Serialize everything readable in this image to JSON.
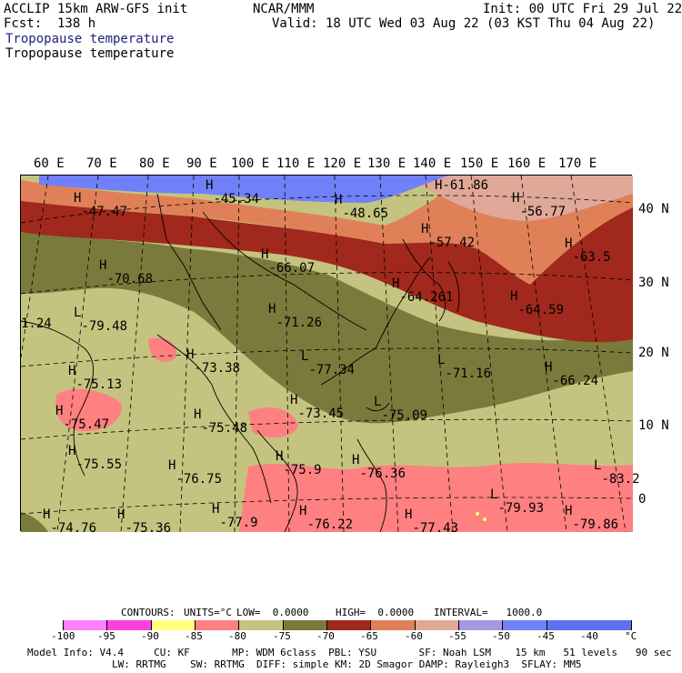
{
  "header": {
    "line1_left": "ACCLIP 15km ARW-GFS init",
    "line1_mid": "NCAR/MMM",
    "line1_right": "Init: 00 UTC Fri 29 Jul 22",
    "line2_left": "Fcst:  138 h",
    "line2_right": "Valid: 18 UTC Wed 03 Aug 22 (03 KST Thu 04 Aug 22)",
    "field1": "Tropopause temperature",
    "field2": "Tropopause temperature"
  },
  "lon_labels": [
    "60 E",
    "70 E",
    "80 E",
    "90 E",
    "100 E",
    "110 E",
    "120 E",
    "130 E",
    "140 E",
    "150 E",
    "160 E",
    "170 E"
  ],
  "lat_labels": [
    "40 N",
    "30 N",
    "20 N",
    "10 N",
    "0"
  ],
  "colors": {
    "c_lt_neg100": "#ffffff",
    "c_m100_m95": "#ff80ff",
    "c_m95_m90": "#ff40e0",
    "c_m90_m85": "#ffff80",
    "c_m85_m80": "#ff8080",
    "c_m80_m75": "#c4c480",
    "c_m75_m70": "#7a7a3c",
    "c_m70_m65": "#a0281c",
    "c_m65_m60": "#e08058",
    "c_m60_m55": "#e0a898",
    "c_m55_m50": "#a898e0",
    "c_m50_m45": "#7080f8",
    "c_gt_m45": "#6070f0"
  },
  "extrema": [
    {
      "type": "H",
      "value": "-47.47"
    },
    {
      "type": "H",
      "value": "-45.34"
    },
    {
      "type": "H",
      "value": "-48.65"
    },
    {
      "type": "H",
      "value": "-61.86"
    },
    {
      "type": "H",
      "value": "-56.77"
    },
    {
      "type": "H",
      "value": "-57.42"
    },
    {
      "type": "H",
      "value": "-66.07"
    },
    {
      "type": "H",
      "value": "-63.5"
    },
    {
      "type": "H",
      "value": "-70.68"
    },
    {
      "type": "L",
      "value": "-79.48"
    },
    {
      "type": "H",
      "value": "-71.26"
    },
    {
      "type": "H",
      "value": "-64.261"
    },
    {
      "type": "H",
      "value": "-64.59"
    },
    {
      "type": "",
      "value": "1.24"
    },
    {
      "type": "H",
      "value": "-73.38"
    },
    {
      "type": "L",
      "value": "-77.34"
    },
    {
      "type": "L",
      "value": "-71.16"
    },
    {
      "type": "H",
      "value": "-66.24"
    },
    {
      "type": "H",
      "value": "-75.13"
    },
    {
      "type": "H",
      "value": "-73.45"
    },
    {
      "type": "L",
      "value": "-75.09"
    },
    {
      "type": "H",
      "value": "-75.47"
    },
    {
      "type": "H",
      "value": "-75.48"
    },
    {
      "type": "H",
      "value": "-75.55"
    },
    {
      "type": "H",
      "value": "-76.75"
    },
    {
      "type": "H",
      "value": "-75.9"
    },
    {
      "type": "H",
      "value": "-76.36"
    },
    {
      "type": "L",
      "value": "-83.2"
    },
    {
      "type": "L",
      "value": "-79.93"
    },
    {
      "type": "H",
      "value": "-74.76"
    },
    {
      "type": "H",
      "value": "-75.36"
    },
    {
      "type": "H",
      "value": "-77.9"
    },
    {
      "type": "H",
      "value": "-76.22"
    },
    {
      "type": "H",
      "value": "-77.43"
    },
    {
      "type": "H",
      "value": "-79.86"
    }
  ],
  "contour_info": {
    "contours": "CONTOURS:",
    "units": "UNITS=°C",
    "low": "LOW=  0.0000",
    "high": "HIGH=  0.0000",
    "interval": "INTERVAL=   1000.0"
  },
  "colorbar_labels": [
    "-100",
    "-95",
    "-90",
    "-85",
    "-80",
    "-75",
    "-70",
    "-65",
    "-60",
    "-55",
    "-50",
    "-45",
    "-40"
  ],
  "colorbar_unit": "°C",
  "footer": {
    "line1": "Model Info: V4.4     CU: KF       MP: WDM 6class  PBL: YSU       SF: Noah LSM    15 km   51 levels   90 sec",
    "line2": "LW: RRTMG    SW: RRTMG  DIFF: simple KM: 2D Smagor DAMP: Rayleigh3  SFLAY: MM5"
  }
}
